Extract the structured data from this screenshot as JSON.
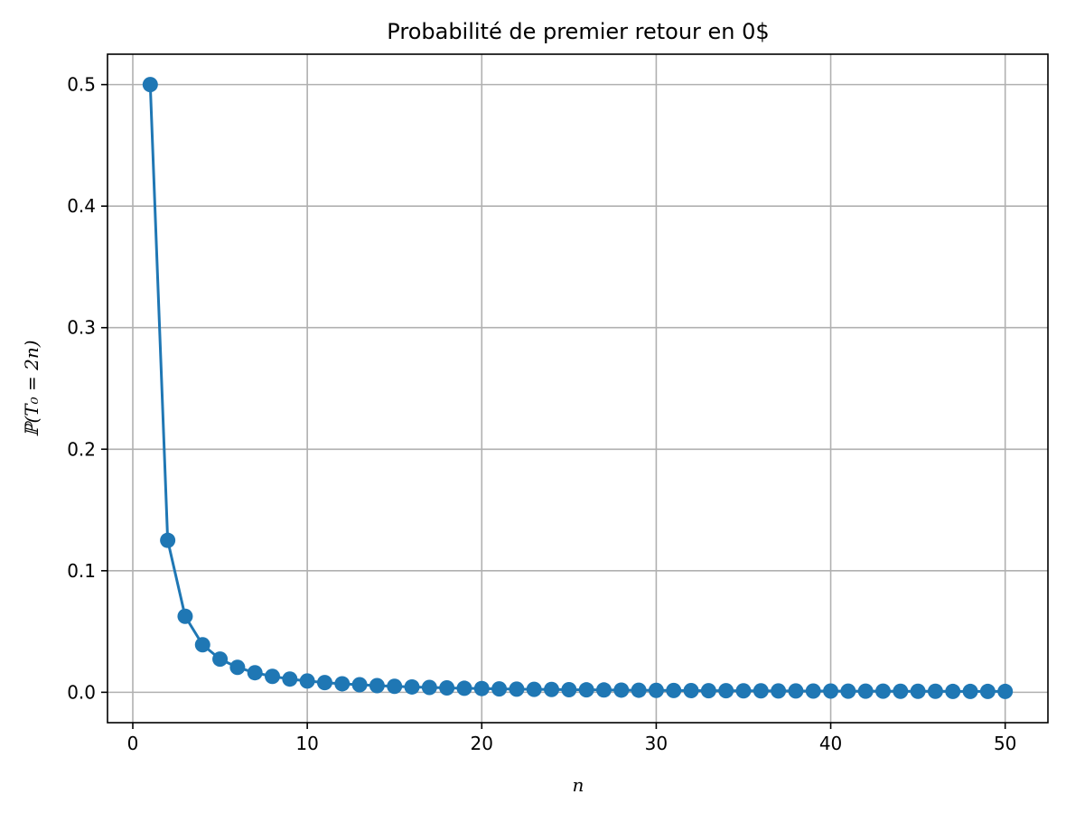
{
  "chart_data": {
    "type": "line",
    "title": "Probabilité de premier retour en 0$",
    "xlabel": "n",
    "ylabel": "ℙ(T₀ = 2n)",
    "xlim": [
      -1.45,
      52.45
    ],
    "ylim": [
      -0.025,
      0.525
    ],
    "xticks": [
      0,
      10,
      20,
      30,
      40,
      50
    ],
    "yticks": [
      0.0,
      0.1,
      0.2,
      0.3,
      0.4,
      0.5
    ],
    "xtick_labels": [
      "0",
      "10",
      "20",
      "30",
      "40",
      "50"
    ],
    "ytick_labels": [
      "0.0",
      "0.1",
      "0.2",
      "0.3",
      "0.4",
      "0.5"
    ],
    "grid": true,
    "color": "#1f77b4",
    "marker": "circle",
    "series": [
      {
        "x": [
          1,
          2,
          3,
          4,
          5,
          6,
          7,
          8,
          9,
          10,
          11,
          12,
          13,
          14,
          15,
          16,
          17,
          18,
          19,
          20,
          21,
          22,
          23,
          24,
          25,
          26,
          27,
          28,
          29,
          30,
          31,
          32,
          33,
          34,
          35,
          36,
          37,
          38,
          39,
          40,
          41,
          42,
          43,
          44,
          45,
          46,
          47,
          48,
          49,
          50
        ],
        "y": [
          0.5,
          0.125,
          0.0625,
          0.0391,
          0.0273,
          0.0205,
          0.0161,
          0.0131,
          0.0109,
          0.0093,
          0.008,
          0.007,
          0.0062,
          0.0055,
          0.0049,
          0.0044,
          0.004,
          0.0036,
          0.0033,
          0.0031,
          0.0028,
          0.0026,
          0.0024,
          0.0023,
          0.0021,
          0.002,
          0.0019,
          0.0018,
          0.0017,
          0.0016,
          0.0015,
          0.0014,
          0.0013,
          0.0013,
          0.0012,
          0.0012,
          0.0011,
          0.0011,
          0.001,
          0.001,
          0.0009,
          0.0009,
          0.0009,
          0.0008,
          0.0008,
          0.0008,
          0.0007,
          0.0007,
          0.0007,
          0.0007
        ]
      }
    ]
  }
}
